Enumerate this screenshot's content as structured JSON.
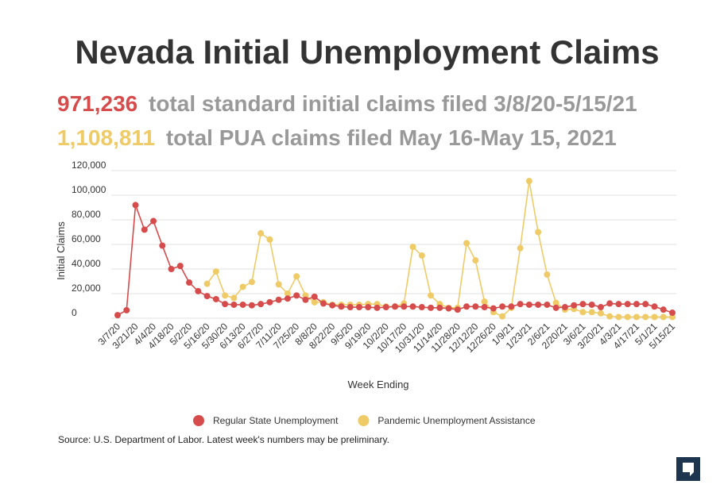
{
  "chart_data": {
    "type": "line",
    "title": "Nevada Initial Unemployment Claims",
    "subtitle_1_total": "971,236",
    "subtitle_1_text": "total standard initial claims filed 3/8/20-5/15/21",
    "subtitle_2_total": "1,108,811",
    "subtitle_2_text": "total PUA claims filed May 16-May 15, 2021",
    "x_label": "Week Ending",
    "y_label": "Initial Claims",
    "source": "Source: U.S. Department of Labor. Latest week's numbers may be preliminary.",
    "categories": [
      "3/7/20",
      null,
      "3/21/20",
      null,
      "4/4/20",
      null,
      "4/18/20",
      null,
      "5/2/20",
      null,
      "5/16/20",
      null,
      "5/30/20",
      null,
      "6/13/20",
      null,
      "6/27/20",
      null,
      "7/11/20",
      null,
      "7/25/20",
      null,
      "8/8/20",
      null,
      "8/22/20",
      null,
      "9/5/20",
      null,
      "9/19/20",
      null,
      "10/2/20",
      null,
      "10/17/20",
      null,
      "10/31/20",
      null,
      "11/14/20",
      null,
      "11/28/20",
      null,
      "12/12/20",
      null,
      "12/26/20",
      null,
      "1/9/21",
      null,
      "1/23/21",
      null,
      "2/6/21",
      null,
      "2/20/21",
      null,
      "3/6/21",
      null,
      "3/20/21",
      null,
      "4/3/21",
      null,
      "4/17/21",
      null,
      "5/1/21",
      null,
      "5/15/21"
    ],
    "series": [
      {
        "name": "Pandemic Unemployment Assistance",
        "color": "#eecb66",
        "values": [
          null,
          null,
          null,
          null,
          null,
          null,
          null,
          null,
          null,
          null,
          28000,
          38000,
          18500,
          16500,
          25500,
          29500,
          69000,
          64000,
          27500,
          20000,
          34000,
          18500,
          13000,
          13000,
          11000,
          11000,
          11000,
          11000,
          11500,
          11500,
          9500,
          9500,
          12000,
          58000,
          51000,
          18500,
          11500,
          8500,
          8500,
          61000,
          47000,
          13500,
          5000,
          1500,
          8500,
          57000,
          111500,
          70000,
          35500,
          12500,
          7000,
          7500,
          5000,
          5000,
          4000,
          1500,
          1000,
          1000,
          1000,
          1000,
          1000,
          1000,
          1000
        ]
      },
      {
        "name": "Regular State Unemployment",
        "color": "#d64b4b",
        "values": [
          2500,
          6500,
          92000,
          72000,
          79000,
          59000,
          40000,
          42500,
          29000,
          22000,
          18000,
          15500,
          11500,
          11000,
          11000,
          10500,
          11500,
          13000,
          15000,
          16000,
          18500,
          15000,
          17500,
          12000,
          10500,
          9500,
          9000,
          9000,
          9000,
          8500,
          9000,
          9500,
          9500,
          9500,
          9000,
          8500,
          8500,
          8000,
          7000,
          9500,
          9500,
          9000,
          8000,
          9500,
          9500,
          11500,
          11000,
          11000,
          11000,
          8500,
          9000,
          10500,
          11500,
          11000,
          9000,
          12000,
          11500,
          11500,
          11500,
          11500,
          9500,
          7000,
          4500
        ]
      }
    ],
    "legend_order": [
      1,
      0
    ],
    "ylim": [
      0,
      120000
    ],
    "yticks": [
      0,
      {
        "value": 20000,
        "label": "20,000"
      },
      {
        "value": 40000,
        "label": "40,000"
      },
      {
        "value": 60000,
        "label": "60,000"
      },
      {
        "value": 80000,
        "label": "80,000"
      },
      {
        "value": 100000,
        "label": "100,000"
      },
      {
        "value": 120000,
        "label": "120,000"
      }
    ],
    "grid": true
  }
}
